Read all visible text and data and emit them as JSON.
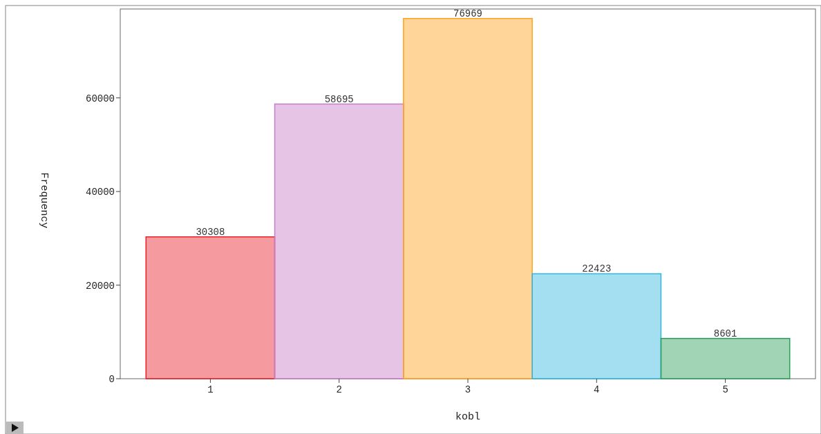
{
  "chart_data": {
    "type": "bar",
    "xlabel": "kobl",
    "ylabel": "Frequency",
    "categories": [
      "1",
      "2",
      "3",
      "4",
      "5"
    ],
    "values": [
      30308,
      58695,
      76969,
      22423,
      8601
    ],
    "colors": [
      "#e8202a",
      "#c77cc7",
      "#ffa21f",
      "#33b6e0",
      "#2ca05a"
    ],
    "ylim": [
      0,
      79000
    ],
    "yticks": [
      0,
      20000,
      40000,
      60000
    ],
    "data_labels": true
  }
}
